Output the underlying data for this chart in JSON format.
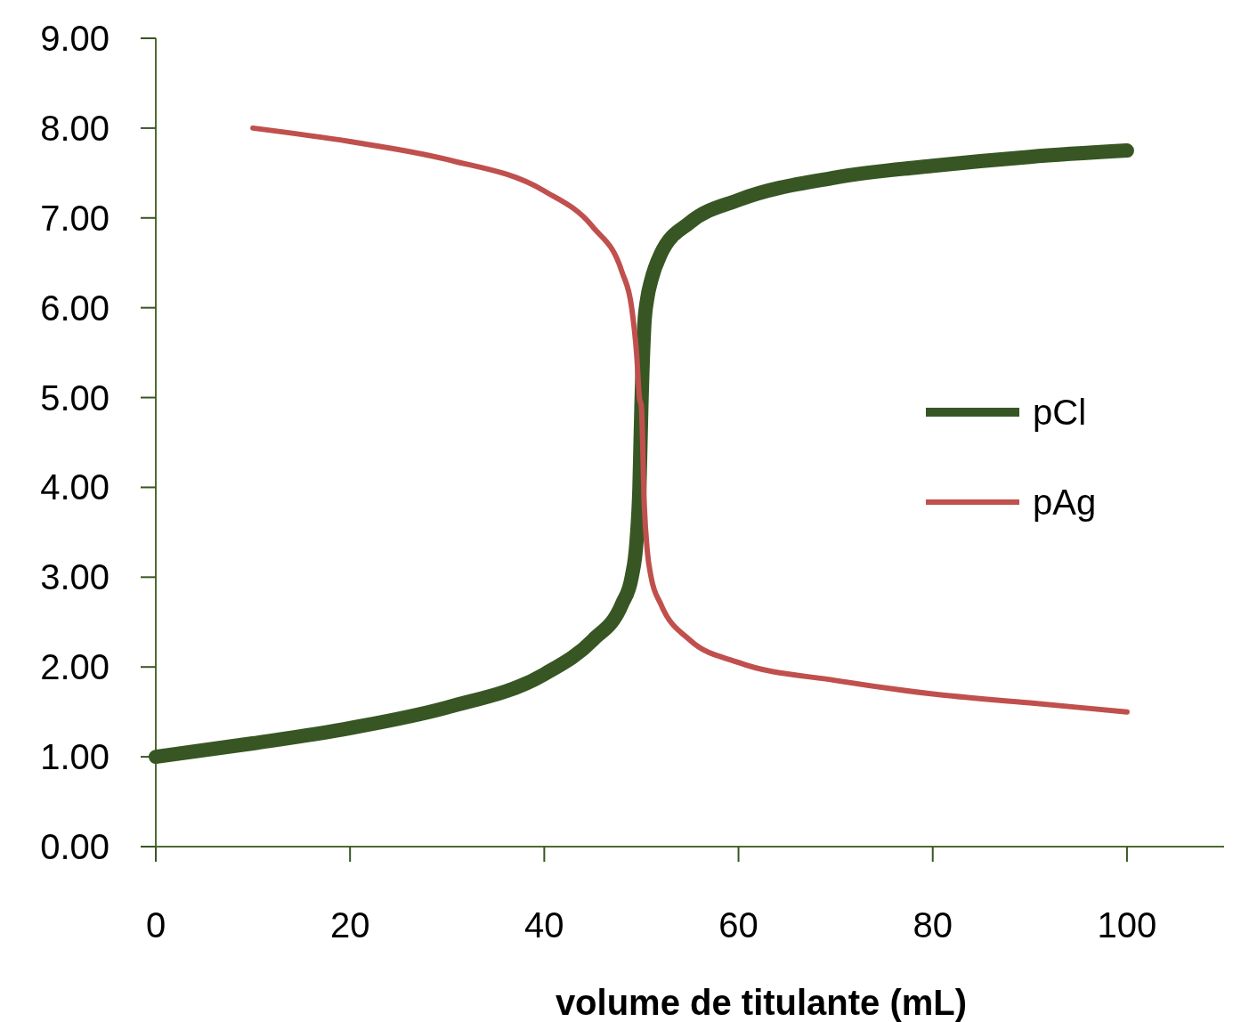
{
  "chart_data": {
    "type": "line",
    "xlabel": "volume de titulante  (mL)",
    "xlim": [
      0,
      110
    ],
    "xticks": [
      0,
      20,
      40,
      60,
      80,
      100
    ],
    "ylim": [
      0,
      9
    ],
    "yticks": [
      {
        "value": 0,
        "label": "0.00"
      },
      {
        "value": 1,
        "label": "1.00"
      },
      {
        "value": 2,
        "label": "2.00"
      },
      {
        "value": 3,
        "label": "3.00"
      },
      {
        "value": 4,
        "label": "4.00"
      },
      {
        "value": 5,
        "label": "5.00"
      },
      {
        "value": 6,
        "label": "6.00"
      },
      {
        "value": 7,
        "label": "7.00"
      },
      {
        "value": 8,
        "label": "8.00"
      },
      {
        "value": 9,
        "label": "9.00"
      }
    ],
    "legend": "right",
    "grid": false,
    "marker": "none",
    "series": [
      {
        "name": "pCl",
        "color": "#375623",
        "x": [
          0,
          10,
          20,
          30,
          40,
          45,
          48,
          49,
          49.5,
          49.8,
          50,
          50.3,
          50.6,
          51,
          52,
          55,
          60,
          70,
          80,
          90,
          100
        ],
        "values": [
          1.0,
          1.15,
          1.32,
          1.55,
          1.92,
          2.3,
          2.7,
          3.0,
          3.4,
          4.0,
          4.9,
          5.8,
          6.1,
          6.3,
          6.6,
          6.95,
          7.2,
          7.45,
          7.58,
          7.68,
          7.75
        ]
      },
      {
        "name": "pAg",
        "color": "#c0504d",
        "x": [
          10,
          20,
          30,
          40,
          45,
          48,
          49,
          49.5,
          49.8,
          50,
          50.3,
          50.6,
          51,
          52,
          55,
          60,
          70,
          80,
          90,
          100
        ],
        "values": [
          8.0,
          7.85,
          7.65,
          7.3,
          6.9,
          6.4,
          6.0,
          5.5,
          5.0,
          4.9,
          3.8,
          3.3,
          3.0,
          2.7,
          2.3,
          2.05,
          1.85,
          1.7,
          1.6,
          1.5
        ]
      }
    ]
  }
}
